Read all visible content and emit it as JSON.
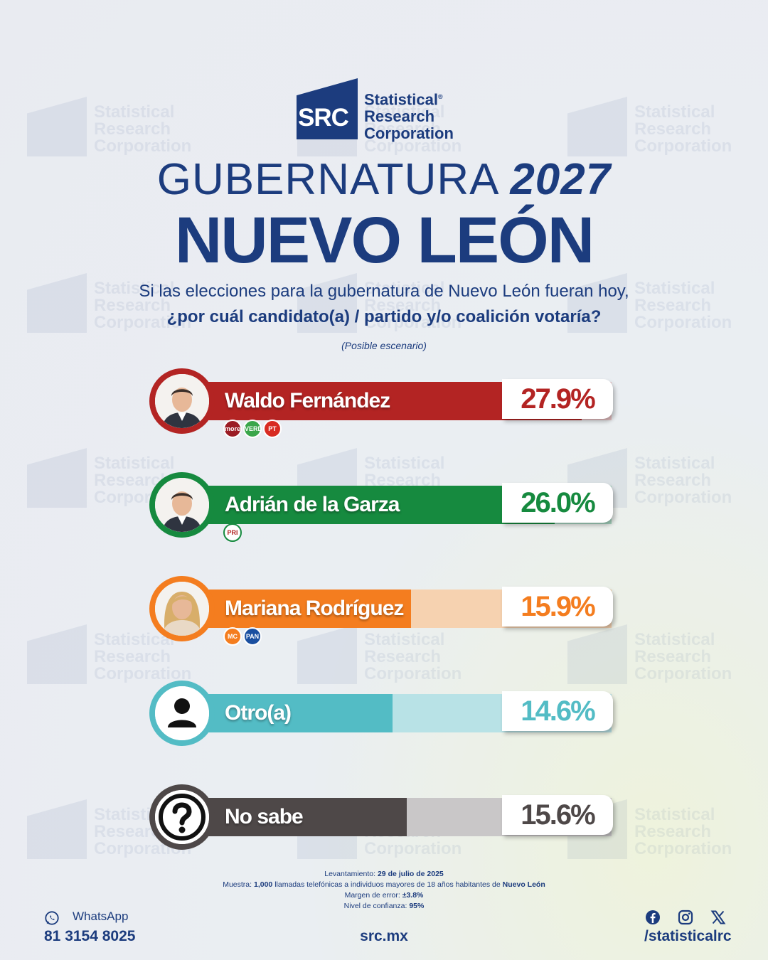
{
  "brand": {
    "logo_short": "SRC",
    "name_line1": "Statistical",
    "name_line2": "Research",
    "name_line3": "Corporation",
    "registered": "®",
    "color": "#1c3c7e"
  },
  "header": {
    "title_part1": "GUBERNATURA",
    "title_year": "2027",
    "title_state": "NUEVO LEÓN",
    "question_line1": "Si las elecciones para la gubernatura de Nuevo León fueran hoy,",
    "question_line2": "¿por cuál candidato(a) / partido y/o coalición votaría?",
    "scenario_note": "(Posible escenario)"
  },
  "chart_data": {
    "type": "bar",
    "categories": [
      "Waldo Fernández",
      "Adrián de la Garza",
      "Mariana Rodríguez",
      "Otro(a)",
      "No sabe"
    ],
    "values": [
      27.9,
      26.0,
      15.9,
      14.6,
      15.6
    ],
    "value_labels": [
      "27.9%",
      "26.0%",
      "15.9%",
      "14.6%",
      "15.6%"
    ],
    "unit": "%",
    "orientation": "horizontal",
    "colors": [
      "#b32423",
      "#168a3f",
      "#f47d1f",
      "#53bcc5",
      "#4e4848"
    ],
    "track_colors": [
      "#e8c2c4",
      "#a7d6c1",
      "#f6d2b0",
      "#b8e2e6",
      "#c9c7c8"
    ],
    "parties": [
      [
        {
          "label": "morena",
          "color": "#9b1c24"
        },
        {
          "label": "VERDE",
          "color": "#3aa64a"
        },
        {
          "label": "PT",
          "color": "#d82b22"
        }
      ],
      [
        {
          "label": "PRI",
          "color": "#ffffff"
        }
      ],
      [
        {
          "label": "MC",
          "color": "#f47d1f"
        },
        {
          "label": "PAN",
          "color": "#1a4fa0"
        }
      ],
      [],
      []
    ]
  },
  "footer": {
    "fieldwork_label": "Levantamiento:",
    "fieldwork_value": "29 de julio de 2025",
    "sample_label": "Muestra:",
    "sample_value": "1,000",
    "sample_text": "llamadas telefónicas a individuos mayores de 18 años habitantes de",
    "sample_place": "Nuevo León",
    "error_label": "Margen de error:",
    "error_value": "±3.8%",
    "confidence_label": "Nivel de confianza:",
    "confidence_value": "95%",
    "whatsapp_label": "WhatsApp",
    "whatsapp_number": "81 3154 8025",
    "website": "src.mx",
    "social_handle": "/statisticalrc",
    "icons": [
      "whatsapp-icon",
      "facebook-icon",
      "instagram-icon",
      "x-icon"
    ]
  }
}
